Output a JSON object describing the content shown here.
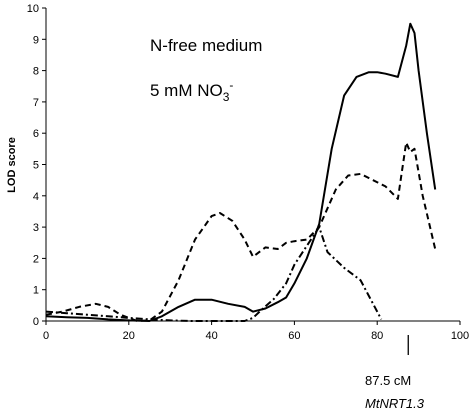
{
  "chart_data": {
    "type": "line",
    "ylabel": "LOD score",
    "xlabel": "",
    "xlim": [
      0,
      100
    ],
    "ylim": [
      0,
      10
    ],
    "x_ticks": [
      "0",
      "20",
      "40",
      "60",
      "80",
      "100"
    ],
    "y_ticks": [
      "0",
      "1",
      "2",
      "3",
      "4",
      "5",
      "6",
      "7",
      "8",
      "9",
      "10"
    ],
    "grid": false,
    "annotations": {
      "line1": "N-free medium",
      "line2_main": "5 mM NO",
      "line2_sub": "3",
      "line2_sup": "-"
    },
    "marker": {
      "x": 87.5,
      "position_label": "87.5 cM",
      "gene_label": "MtNRT1.3"
    },
    "series": [
      {
        "style": "solid",
        "x": [
          0,
          5,
          10,
          15,
          20,
          25,
          28,
          32,
          36,
          40,
          44,
          48,
          50,
          53,
          56,
          58,
          60,
          63,
          66,
          69,
          72,
          75,
          78,
          80,
          82,
          85,
          87,
          88,
          89,
          90,
          92,
          94
        ],
        "y": [
          0.15,
          0.12,
          0.1,
          0.05,
          0.02,
          0.0,
          0.15,
          0.45,
          0.68,
          0.68,
          0.55,
          0.45,
          0.3,
          0.4,
          0.6,
          0.75,
          1.2,
          2.0,
          3.1,
          5.5,
          7.2,
          7.8,
          7.95,
          7.95,
          7.9,
          7.8,
          8.8,
          9.5,
          9.2,
          8.0,
          6.0,
          4.2
        ]
      },
      {
        "style": "dashed",
        "x": [
          0,
          4,
          8,
          12,
          15,
          18,
          22,
          25,
          28,
          32,
          36,
          40,
          42,
          45,
          48,
          50,
          53,
          56,
          58,
          60,
          63,
          66,
          70,
          73,
          76,
          79,
          82,
          85,
          86,
          87,
          88,
          89,
          91,
          94
        ],
        "y": [
          0.2,
          0.3,
          0.45,
          0.55,
          0.45,
          0.2,
          0.0,
          0.02,
          0.3,
          1.3,
          2.6,
          3.35,
          3.45,
          3.2,
          2.6,
          2.05,
          2.35,
          2.3,
          2.5,
          2.55,
          2.6,
          3.0,
          4.2,
          4.65,
          4.7,
          4.5,
          4.3,
          3.9,
          4.8,
          5.7,
          5.4,
          5.5,
          4.0,
          2.3
        ]
      },
      {
        "style": "dash-dot",
        "x": [
          0,
          5,
          10,
          15,
          20,
          25,
          30,
          35,
          40,
          45,
          48,
          50,
          52,
          55,
          58,
          60,
          63,
          66,
          68,
          72,
          76,
          78,
          80,
          81
        ],
        "y": [
          0.3,
          0.25,
          0.2,
          0.15,
          0.1,
          0.05,
          0.02,
          0.0,
          0.0,
          0.0,
          0.0,
          0.1,
          0.35,
          0.7,
          1.2,
          1.8,
          2.4,
          3.0,
          2.2,
          1.7,
          1.3,
          0.8,
          0.3,
          0.05
        ]
      }
    ]
  }
}
